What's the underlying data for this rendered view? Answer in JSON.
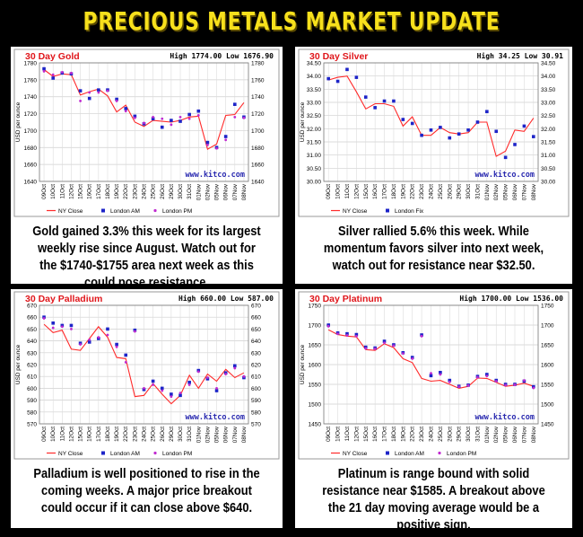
{
  "header": {
    "title": "PRECIOUS METALS MARKET UPDATE"
  },
  "charts": [
    {
      "id": "gold",
      "caption": "Gold gained 3.3% this week for its largest weekly rise since August.  Watch out for the $1740-$1755 area next week as this could pose resistance.",
      "chart_data": {
        "type": "line",
        "title": "30 Day Gold",
        "high_low": "High 1774.00 Low 1676.90",
        "ylabel": "USD per ounce",
        "ylim": [
          1640,
          1780
        ],
        "yticks": [
          1640,
          1660,
          1680,
          1700,
          1720,
          1740,
          1760,
          1780
        ],
        "categories": [
          "09Oct",
          "10Oct",
          "11Oct",
          "12Oct",
          "15Oct",
          "16Oct",
          "17Oct",
          "18Oct",
          "19Oct",
          "22Oct",
          "23Oct",
          "24Oct",
          "25Oct",
          "26Oct",
          "29Oct",
          "30Oct",
          "31Oct",
          "01Nov",
          "02Nov",
          "05Nov",
          "06Nov",
          "07Nov",
          "08Nov"
        ],
        "xticks": [
          "09Oct",
          "10Oct",
          "11Oct",
          "12Oct",
          "15Oct",
          "16Oct",
          "17Oct",
          "18Oct",
          "19Oct",
          "22Oct",
          "23Oct",
          "24Oct",
          "25Oct",
          "26Oct",
          "29Oct",
          "30Oct",
          "31Oct",
          "01Nov",
          "02Nov",
          "05Nov",
          "06Nov",
          "07Nov",
          "08Nov"
        ],
        "legend": [
          "NY Close",
          "London AM",
          "London PM"
        ],
        "watermark": "www.kitco.com",
        "series": [
          {
            "name": "NY Close",
            "values": [
              1772,
              1764,
              1767,
              1766,
              1742,
              1746,
              1749,
              1741,
              1722,
              1730,
              1710,
              1705,
              1712,
              1711,
              1710,
              1712,
              1716,
              1717,
              1678,
              1684,
              1718,
              1719,
              1733
            ]
          },
          {
            "name": "London AM",
            "values": [
              1773,
              1762,
              1768,
              1767,
              1747,
              1738,
              1748,
              1748,
              1737,
              1726,
              1717,
              1708,
              1714,
              1704,
              1712,
              1711,
              1719,
              1723,
              1686,
              1680,
              1693,
              1731,
              1716
            ]
          },
          {
            "name": "London PM",
            "values": [
              1770,
              1766,
              1769,
              1768,
              1735,
              1745,
              1745,
              1747,
              1735,
              1723,
              1715,
              1709,
              1716,
              1714,
              1707,
              1716,
              1714,
              1718,
              1683,
              1679,
              1689,
              1716,
              1715
            ]
          }
        ]
      }
    },
    {
      "id": "silver",
      "caption": "Silver rallied 5.6% this week. While momentum favors silver into next week, watch out for resistance near $32.50.",
      "chart_data": {
        "type": "line",
        "title": "30 Day Silver",
        "high_low": "High 34.25 Low 30.91",
        "ylabel": "USD per ounce",
        "ylim": [
          30.0,
          34.5
        ],
        "yticks": [
          30.0,
          30.5,
          31.0,
          31.5,
          32.0,
          32.5,
          33.0,
          33.5,
          34.0,
          34.5
        ],
        "categories": [
          "09Oct",
          "10Oct",
          "11Oct",
          "12Oct",
          "15Oct",
          "16Oct",
          "17Oct",
          "18Oct",
          "19Oct",
          "22Oct",
          "23Oct",
          "24Oct",
          "25Oct",
          "26Oct",
          "29Oct",
          "30Oct",
          "31Oct",
          "01Nov",
          "02Nov",
          "05Nov",
          "06Nov",
          "07Nov",
          "08Nov"
        ],
        "xticks": [
          "09Oct",
          "10Oct",
          "11Oct",
          "12Oct",
          "15Oct",
          "16Oct",
          "17Oct",
          "18Oct",
          "19Oct",
          "22Oct",
          "23Oct",
          "24Oct",
          "25Oct",
          "26Oct",
          "29Oct",
          "30Oct",
          "31Oct",
          "01Nov",
          "02Nov",
          "05Nov",
          "06Nov",
          "07Nov",
          "08Nov"
        ],
        "legend": [
          "NY Close",
          "London Fix"
        ],
        "watermark": "www.kitco.com",
        "series": [
          {
            "name": "NY Close",
            "values": [
              33.85,
              33.95,
              34.0,
              33.4,
              32.75,
              32.95,
              32.95,
              32.85,
              32.1,
              32.45,
              31.75,
              31.75,
              32.05,
              31.85,
              31.8,
              31.85,
              32.25,
              32.25,
              30.95,
              31.15,
              31.95,
              31.9,
              32.4
            ]
          },
          {
            "name": "London Fix",
            "values": [
              33.9,
              33.8,
              34.25,
              33.95,
              33.2,
              32.8,
              33.05,
              33.05,
              32.35,
              32.2,
              31.75,
              31.95,
              32.05,
              31.65,
              31.8,
              31.95,
              32.25,
              32.65,
              31.9,
              30.91,
              31.4,
              32.1,
              31.7
            ]
          }
        ]
      }
    },
    {
      "id": "palladium",
      "caption": "Palladium is well positioned to rise in the coming weeks. A major price breakout could occur if it can close above $640.",
      "chart_data": {
        "type": "line",
        "title": "30 Day Palladium",
        "high_low": "High 660.00 Low 587.00",
        "ylabel": "USD per ounce",
        "ylim": [
          570,
          670
        ],
        "yticks": [
          570,
          580,
          590,
          600,
          610,
          620,
          630,
          640,
          650,
          660,
          670
        ],
        "categories": [
          "09Oct",
          "10Oct",
          "11Oct",
          "12Oct",
          "15Oct",
          "16Oct",
          "17Oct",
          "18Oct",
          "19Oct",
          "22Oct",
          "23Oct",
          "24Oct",
          "25Oct",
          "26Oct",
          "29Oct",
          "30Oct",
          "31Oct",
          "01Nov",
          "02Nov",
          "05Nov",
          "06Nov",
          "07Nov",
          "08Nov"
        ],
        "xticks": [
          "09Oct",
          "10Oct",
          "11Oct",
          "12Oct",
          "15Oct",
          "16Oct",
          "17Oct",
          "18Oct",
          "19Oct",
          "22Oct",
          "23Oct",
          "24Oct",
          "25Oct",
          "26Oct",
          "29Oct",
          "30Oct",
          "31Oct",
          "01Nov",
          "02Nov",
          "05Nov",
          "06Nov",
          "07Nov",
          "08Nov"
        ],
        "legend": [
          "NY Close",
          "London AM",
          "London PM"
        ],
        "watermark": "www.kitco.com",
        "series": [
          {
            "name": "NY Close",
            "values": [
              654,
              647,
              649,
              633,
              632,
              642,
              652,
              643,
              626,
              625,
              593,
              594,
              604,
              595,
              587,
              594,
              611,
              600,
              612,
              606,
              616,
              609,
              613
            ]
          },
          {
            "name": "London AM",
            "values": [
              660,
              655,
              653,
              653,
              638,
              639,
              642,
              650,
              637,
              628,
              649,
              599,
              606,
              600,
              595,
              594,
              605,
              615,
              608,
              598,
              613,
              619,
              609
            ]
          },
          {
            "name": "London PM",
            "values": [
              659,
              651,
              652,
              650,
              637,
              641,
              643,
              645,
              635,
              622,
              648,
              600,
              603,
              598,
              593,
              596,
              603,
              614,
              609,
              600,
              612,
              617,
              610
            ]
          }
        ]
      }
    },
    {
      "id": "platinum",
      "caption": "Platinum is range bound with solid resistance near $1585. A breakout above the 21 day moving average would be a positive sign.",
      "chart_data": {
        "type": "line",
        "title": "30 Day Platinum",
        "high_low": "High 1700.00 Low 1536.00",
        "ylabel": "USD per ounce",
        "ylim": [
          1450,
          1750
        ],
        "yticks": [
          1450,
          1500,
          1550,
          1600,
          1650,
          1700,
          1750
        ],
        "categories": [
          "09Oct",
          "10Oct",
          "11Oct",
          "12Oct",
          "15Oct",
          "16Oct",
          "17Oct",
          "18Oct",
          "19Oct",
          "22Oct",
          "23Oct",
          "24Oct",
          "25Oct",
          "26Oct",
          "29Oct",
          "30Oct",
          "31Oct",
          "01Nov",
          "02Nov",
          "05Nov",
          "06Nov",
          "07Nov",
          "08Nov"
        ],
        "xticks": [
          "09Oct",
          "10Oct",
          "11Oct",
          "12Oct",
          "15Oct",
          "16Oct",
          "17Oct",
          "18Oct",
          "19Oct",
          "22Oct",
          "23Oct",
          "24Oct",
          "25Oct",
          "26Oct",
          "29Oct",
          "30Oct",
          "31Oct",
          "01Nov",
          "02Nov",
          "05Nov",
          "06Nov",
          "07Nov",
          "08Nov"
        ],
        "legend": [
          "NY Close",
          "London AM",
          "London PM"
        ],
        "watermark": "www.kitco.com",
        "series": [
          {
            "name": "NY Close",
            "values": [
              1688,
              1676,
              1672,
              1670,
              1638,
              1636,
              1653,
              1643,
              1615,
              1605,
              1565,
              1558,
              1560,
              1550,
              1540,
              1545,
              1566,
              1565,
              1555,
              1545,
              1548,
              1553,
              1545
            ]
          },
          {
            "name": "London AM",
            "values": [
              1700,
              1680,
              1678,
              1676,
              1644,
              1642,
              1659,
              1650,
              1630,
              1618,
              1675,
              1572,
              1580,
              1560,
              1545,
              1548,
              1570,
              1575,
              1560,
              1550,
              1550,
              1558,
              1544
            ]
          },
          {
            "name": "London PM",
            "values": [
              1697,
              1678,
              1674,
              1672,
              1641,
              1640,
              1655,
              1648,
              1628,
              1615,
              1672,
              1578,
              1575,
              1556,
              1544,
              1547,
              1568,
              1571,
              1558,
              1548,
              1549,
              1560,
              1541
            ]
          }
        ]
      }
    }
  ]
}
